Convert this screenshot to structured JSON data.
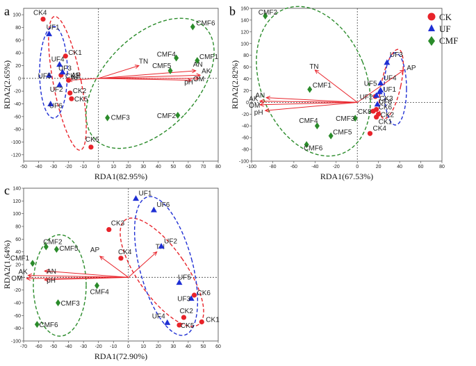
{
  "chart_data": [
    {
      "type": "scatter",
      "panel": "a",
      "xlabel": "RDA1(82.95%)",
      "ylabel": "RDA2(2.65%)",
      "xlim": [
        -50,
        80
      ],
      "ylim": [
        -130,
        110
      ],
      "xticks": [
        -50,
        -40,
        -30,
        -20,
        -10,
        0,
        10,
        20,
        30,
        40,
        50,
        60,
        70,
        80
      ],
      "yticks": [
        -120,
        -100,
        -80,
        -60,
        -40,
        -20,
        0,
        20,
        40,
        60,
        80,
        100
      ],
      "points": [
        {
          "label": "CK4",
          "group": "CK",
          "x": -37,
          "y": 93
        },
        {
          "label": "CK1",
          "group": "CK",
          "x": -22,
          "y": 35
        },
        {
          "label": "CK3",
          "group": "CK",
          "x": -25,
          "y": 5
        },
        {
          "label": "AP",
          "group": "CK",
          "x": -20,
          "y": -3
        },
        {
          "label": "CK2",
          "group": "CK",
          "x": -19,
          "y": -23
        },
        {
          "label": "CK5",
          "group": "CK",
          "x": -18,
          "y": -32
        },
        {
          "label": "CK6",
          "group": "CK",
          "x": -5,
          "y": -108
        },
        {
          "label": "UF1",
          "group": "UF",
          "x": -33,
          "y": 70
        },
        {
          "label": "UF4",
          "group": "UF",
          "x": -26,
          "y": 22
        },
        {
          "label": "UF3",
          "group": "UF",
          "x": -24,
          "y": 10
        },
        {
          "label": "UF5",
          "group": "UF",
          "x": -33,
          "y": 5
        },
        {
          "label": "UF2",
          "group": "UF",
          "x": -26,
          "y": -10
        },
        {
          "label": "UF6",
          "group": "UF",
          "x": -32,
          "y": -40
        },
        {
          "label": "CMF6",
          "group": "CMF",
          "x": 63,
          "y": 81
        },
        {
          "label": "CMF4",
          "group": "CMF",
          "x": 52,
          "y": 32
        },
        {
          "label": "CMF1",
          "group": "CMF",
          "x": 66,
          "y": 28
        },
        {
          "label": "CMF5",
          "group": "CMF",
          "x": 48,
          "y": 12
        },
        {
          "label": "CMF3",
          "group": "CMF",
          "x": 6,
          "y": -62
        },
        {
          "label": "CMF2",
          "group": "CMF",
          "x": 53,
          "y": -58
        }
      ],
      "vectors": [
        {
          "label": "TN",
          "x": 27,
          "y": 20
        },
        {
          "label": "AN",
          "x": 65,
          "y": 12
        },
        {
          "label": "AK",
          "x": 68,
          "y": 5
        },
        {
          "label": "OM",
          "x": 67,
          "y": 0
        },
        {
          "label": "pH",
          "x": 62,
          "y": -3
        },
        {
          "label": "AP",
          "x": -20,
          "y": -3
        }
      ]
    },
    {
      "type": "scatter",
      "panel": "b",
      "xlabel": "RDA1(67.53%)",
      "ylabel": "RDA2(2.82%)",
      "xlim": [
        -100,
        80
      ],
      "ylim": [
        -100,
        160
      ],
      "xticks": [
        -100,
        -80,
        -60,
        -40,
        -20,
        0,
        20,
        40,
        60,
        80
      ],
      "yticks": [
        -100,
        -80,
        -60,
        -40,
        -20,
        0,
        20,
        40,
        60,
        80,
        100,
        120,
        140,
        160
      ],
      "points": [
        {
          "label": "CK3",
          "group": "CK",
          "x": 17,
          "y": 10
        },
        {
          "label": "CK1",
          "group": "CK",
          "x": 18,
          "y": -25
        },
        {
          "label": "CK8",
          "group": "CK",
          "x": 15,
          "y": -15
        },
        {
          "label": "CK2",
          "group": "CK",
          "x": 20,
          "y": -20
        },
        {
          "label": "CK6",
          "group": "CK",
          "x": 18,
          "y": -12
        },
        {
          "label": "CK4",
          "group": "CK",
          "x": 12,
          "y": -53
        },
        {
          "label": "UF3",
          "group": "UF",
          "x": 28,
          "y": 68
        },
        {
          "label": "UF4",
          "group": "UF",
          "x": 22,
          "y": 33
        },
        {
          "label": "UF5",
          "group": "UF",
          "x": 22,
          "y": 21
        },
        {
          "label": "UF1",
          "group": "UF",
          "x": 21,
          "y": 18
        },
        {
          "label": "UF2",
          "group": "UF",
          "x": 18,
          "y": 12
        },
        {
          "label": "UF6",
          "group": "UF",
          "x": 19,
          "y": -3
        },
        {
          "label": "CMF2",
          "group": "CMF",
          "x": -87,
          "y": 147
        },
        {
          "label": "CMF1",
          "group": "CMF",
          "x": -45,
          "y": 22
        },
        {
          "label": "CMF3",
          "group": "CMF",
          "x": -2,
          "y": -27
        },
        {
          "label": "CMF4",
          "group": "CMF",
          "x": -38,
          "y": -40
        },
        {
          "label": "CMF5",
          "group": "CMF",
          "x": -25,
          "y": -57
        },
        {
          "label": "CMF6",
          "group": "CMF",
          "x": -48,
          "y": -72
        }
      ],
      "vectors": [
        {
          "label": "AP",
          "x": 44,
          "y": 55
        },
        {
          "label": "TN",
          "x": -40,
          "y": 55
        },
        {
          "label": "AN",
          "x": -86,
          "y": 8
        },
        {
          "label": "AK",
          "x": -92,
          "y": 2
        },
        {
          "label": "OM",
          "x": -92,
          "y": -4
        },
        {
          "label": "pH",
          "x": -87,
          "y": -14
        }
      ]
    },
    {
      "type": "scatter",
      "panel": "c",
      "xlabel": "RDA1(72.90%)",
      "ylabel": "RDA2(1.64%)",
      "xlim": [
        -70,
        60
      ],
      "ylim": [
        -100,
        140
      ],
      "xticks": [
        -70,
        -60,
        -50,
        -40,
        -30,
        -20,
        -10,
        0,
        10,
        20,
        30,
        40,
        50,
        60
      ],
      "yticks": [
        -100,
        -80,
        -60,
        -40,
        -20,
        0,
        20,
        40,
        60,
        80,
        100,
        120,
        140
      ],
      "points": [
        {
          "label": "CK3",
          "group": "CK",
          "x": -13,
          "y": 75
        },
        {
          "label": "CK4",
          "group": "CK",
          "x": -5,
          "y": 30
        },
        {
          "label": "CK6",
          "group": "CK",
          "x": 44,
          "y": -28
        },
        {
          "label": "CK2",
          "group": "CK",
          "x": 37,
          "y": -63
        },
        {
          "label": "CK1",
          "group": "CK",
          "x": 49,
          "y": -70
        },
        {
          "label": "CK5",
          "group": "CK",
          "x": 34,
          "y": -75
        },
        {
          "label": "UF1",
          "group": "UF",
          "x": 5,
          "y": 124
        },
        {
          "label": "UF6",
          "group": "UF",
          "x": 17,
          "y": 106
        },
        {
          "label": "UF2",
          "group": "UF",
          "x": 22,
          "y": 49
        },
        {
          "label": "UF5",
          "group": "UF",
          "x": 34,
          "y": -8
        },
        {
          "label": "UF3",
          "group": "UF",
          "x": 42,
          "y": -33
        },
        {
          "label": "UF4",
          "group": "UF",
          "x": 26,
          "y": -71
        },
        {
          "label": "CMF2",
          "group": "CMF",
          "x": -55,
          "y": 48
        },
        {
          "label": "CMF5",
          "group": "CMF",
          "x": -48,
          "y": 44
        },
        {
          "label": "CMF1",
          "group": "CMF",
          "x": -64,
          "y": 22
        },
        {
          "label": "CMF4",
          "group": "CMF",
          "x": -21,
          "y": -13
        },
        {
          "label": "CMF3",
          "group": "CMF",
          "x": -47,
          "y": -40
        },
        {
          "label": "CMF6",
          "group": "CMF",
          "x": -61,
          "y": -74
        }
      ],
      "vectors": [
        {
          "label": "AP",
          "x": -19,
          "y": 33
        },
        {
          "label": "TN",
          "x": 19,
          "y": 40
        },
        {
          "label": "AN",
          "x": -56,
          "y": 10
        },
        {
          "label": "AK",
          "x": -67,
          "y": 3
        },
        {
          "label": "OM",
          "x": -68,
          "y": -2
        },
        {
          "label": "pH",
          "x": -56,
          "y": -4
        }
      ]
    }
  ],
  "legend": {
    "items": [
      {
        "name": "CK",
        "color": "#e8232a",
        "marker": "circle"
      },
      {
        "name": "UF",
        "color": "#1f2fd4",
        "marker": "triangle"
      },
      {
        "name": "CMF",
        "color": "#2a8b2a",
        "marker": "diamond"
      }
    ]
  },
  "colors": {
    "CK": "#e8232a",
    "UF": "#1f2fd4",
    "CMF": "#2a8b2a",
    "arrow": "#e8232a"
  }
}
